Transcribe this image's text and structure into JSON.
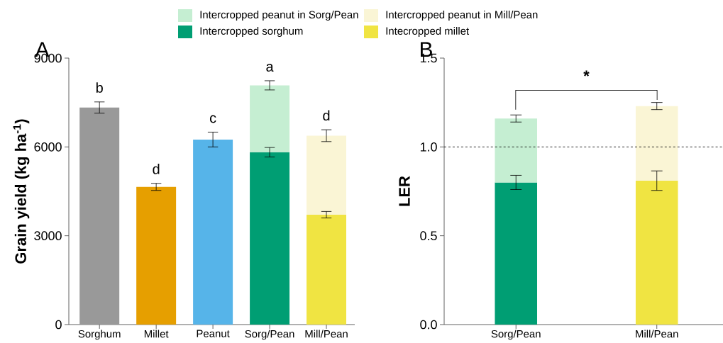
{
  "chart_data": [
    {
      "type": "bar",
      "title": "A",
      "ylabel": "Grain yield (kg ha$^{-1}$)",
      "categories": [
        "Sorghum",
        "Millet",
        "Peanut",
        "Sorg/Pean",
        "Mill/Pean"
      ],
      "stacked": true,
      "legend": "top",
      "ylim": [
        0,
        9000
      ],
      "yticks": [
        0,
        3000,
        6000,
        9000
      ],
      "series": [
        {
          "colors": [
            "#999999",
            "#e69f00",
            "#56b4e9",
            null,
            null
          ],
          "values": [
            7330,
            4650,
            6250,
            null,
            null
          ],
          "errors": [
            190,
            120,
            250,
            null,
            null
          ]
        },
        {
          "name": "Intercropped sorghum",
          "color": "#009e73",
          "values": [
            null,
            null,
            null,
            5820,
            null
          ],
          "errors": [
            null,
            null,
            null,
            160,
            null
          ]
        },
        {
          "name": "Intecropped millet",
          "color": "#f0e442",
          "values": [
            null,
            null,
            null,
            null,
            3710
          ],
          "errors": [
            null,
            null,
            null,
            null,
            110
          ]
        },
        {
          "name": "Intercropped peanut in Sorg/Pean",
          "color": "#c5eed2",
          "values": [
            null,
            null,
            null,
            2260,
            null
          ],
          "errors": [
            null,
            null,
            null,
            155,
            null
          ]
        },
        {
          "name": "Intercropped peanut in Mill/Pean",
          "color": "#faf5d5",
          "values": [
            null,
            null,
            null,
            null,
            2670
          ],
          "errors": [
            null,
            null,
            null,
            null,
            200
          ]
        }
      ],
      "annotations": [
        "b",
        "d",
        "c",
        "a",
        "d"
      ]
    },
    {
      "type": "bar",
      "title": "B",
      "ylabel": "LER",
      "categories": [
        "Sorg/Pean",
        "Mill/Pean"
      ],
      "stacked": true,
      "ylim": [
        0,
        1.5
      ],
      "yticks": [
        {
          "value": 0,
          "label": "0.0"
        },
        0.5,
        {
          "value": 1,
          "label": "1.0"
        },
        1.5
      ],
      "series": [
        {
          "color": "#009e73",
          "values": [
            0.8,
            null
          ],
          "errors": [
            0.04,
            null
          ]
        },
        {
          "color": "#f0e442",
          "values": [
            null,
            0.81
          ],
          "errors": [
            null,
            0.055
          ]
        },
        {
          "color": "#c5eed2",
          "values": [
            0.36,
            null
          ],
          "errors": [
            0.02,
            null
          ]
        },
        {
          "color": "#faf5d5",
          "values": [
            null,
            0.42
          ],
          "errors": [
            null,
            0.02
          ]
        }
      ],
      "ref_lines": [
        {
          "axis": "y",
          "value": 1.0,
          "line_style": "dashed"
        }
      ],
      "annotations": [
        "*"
      ]
    }
  ]
}
